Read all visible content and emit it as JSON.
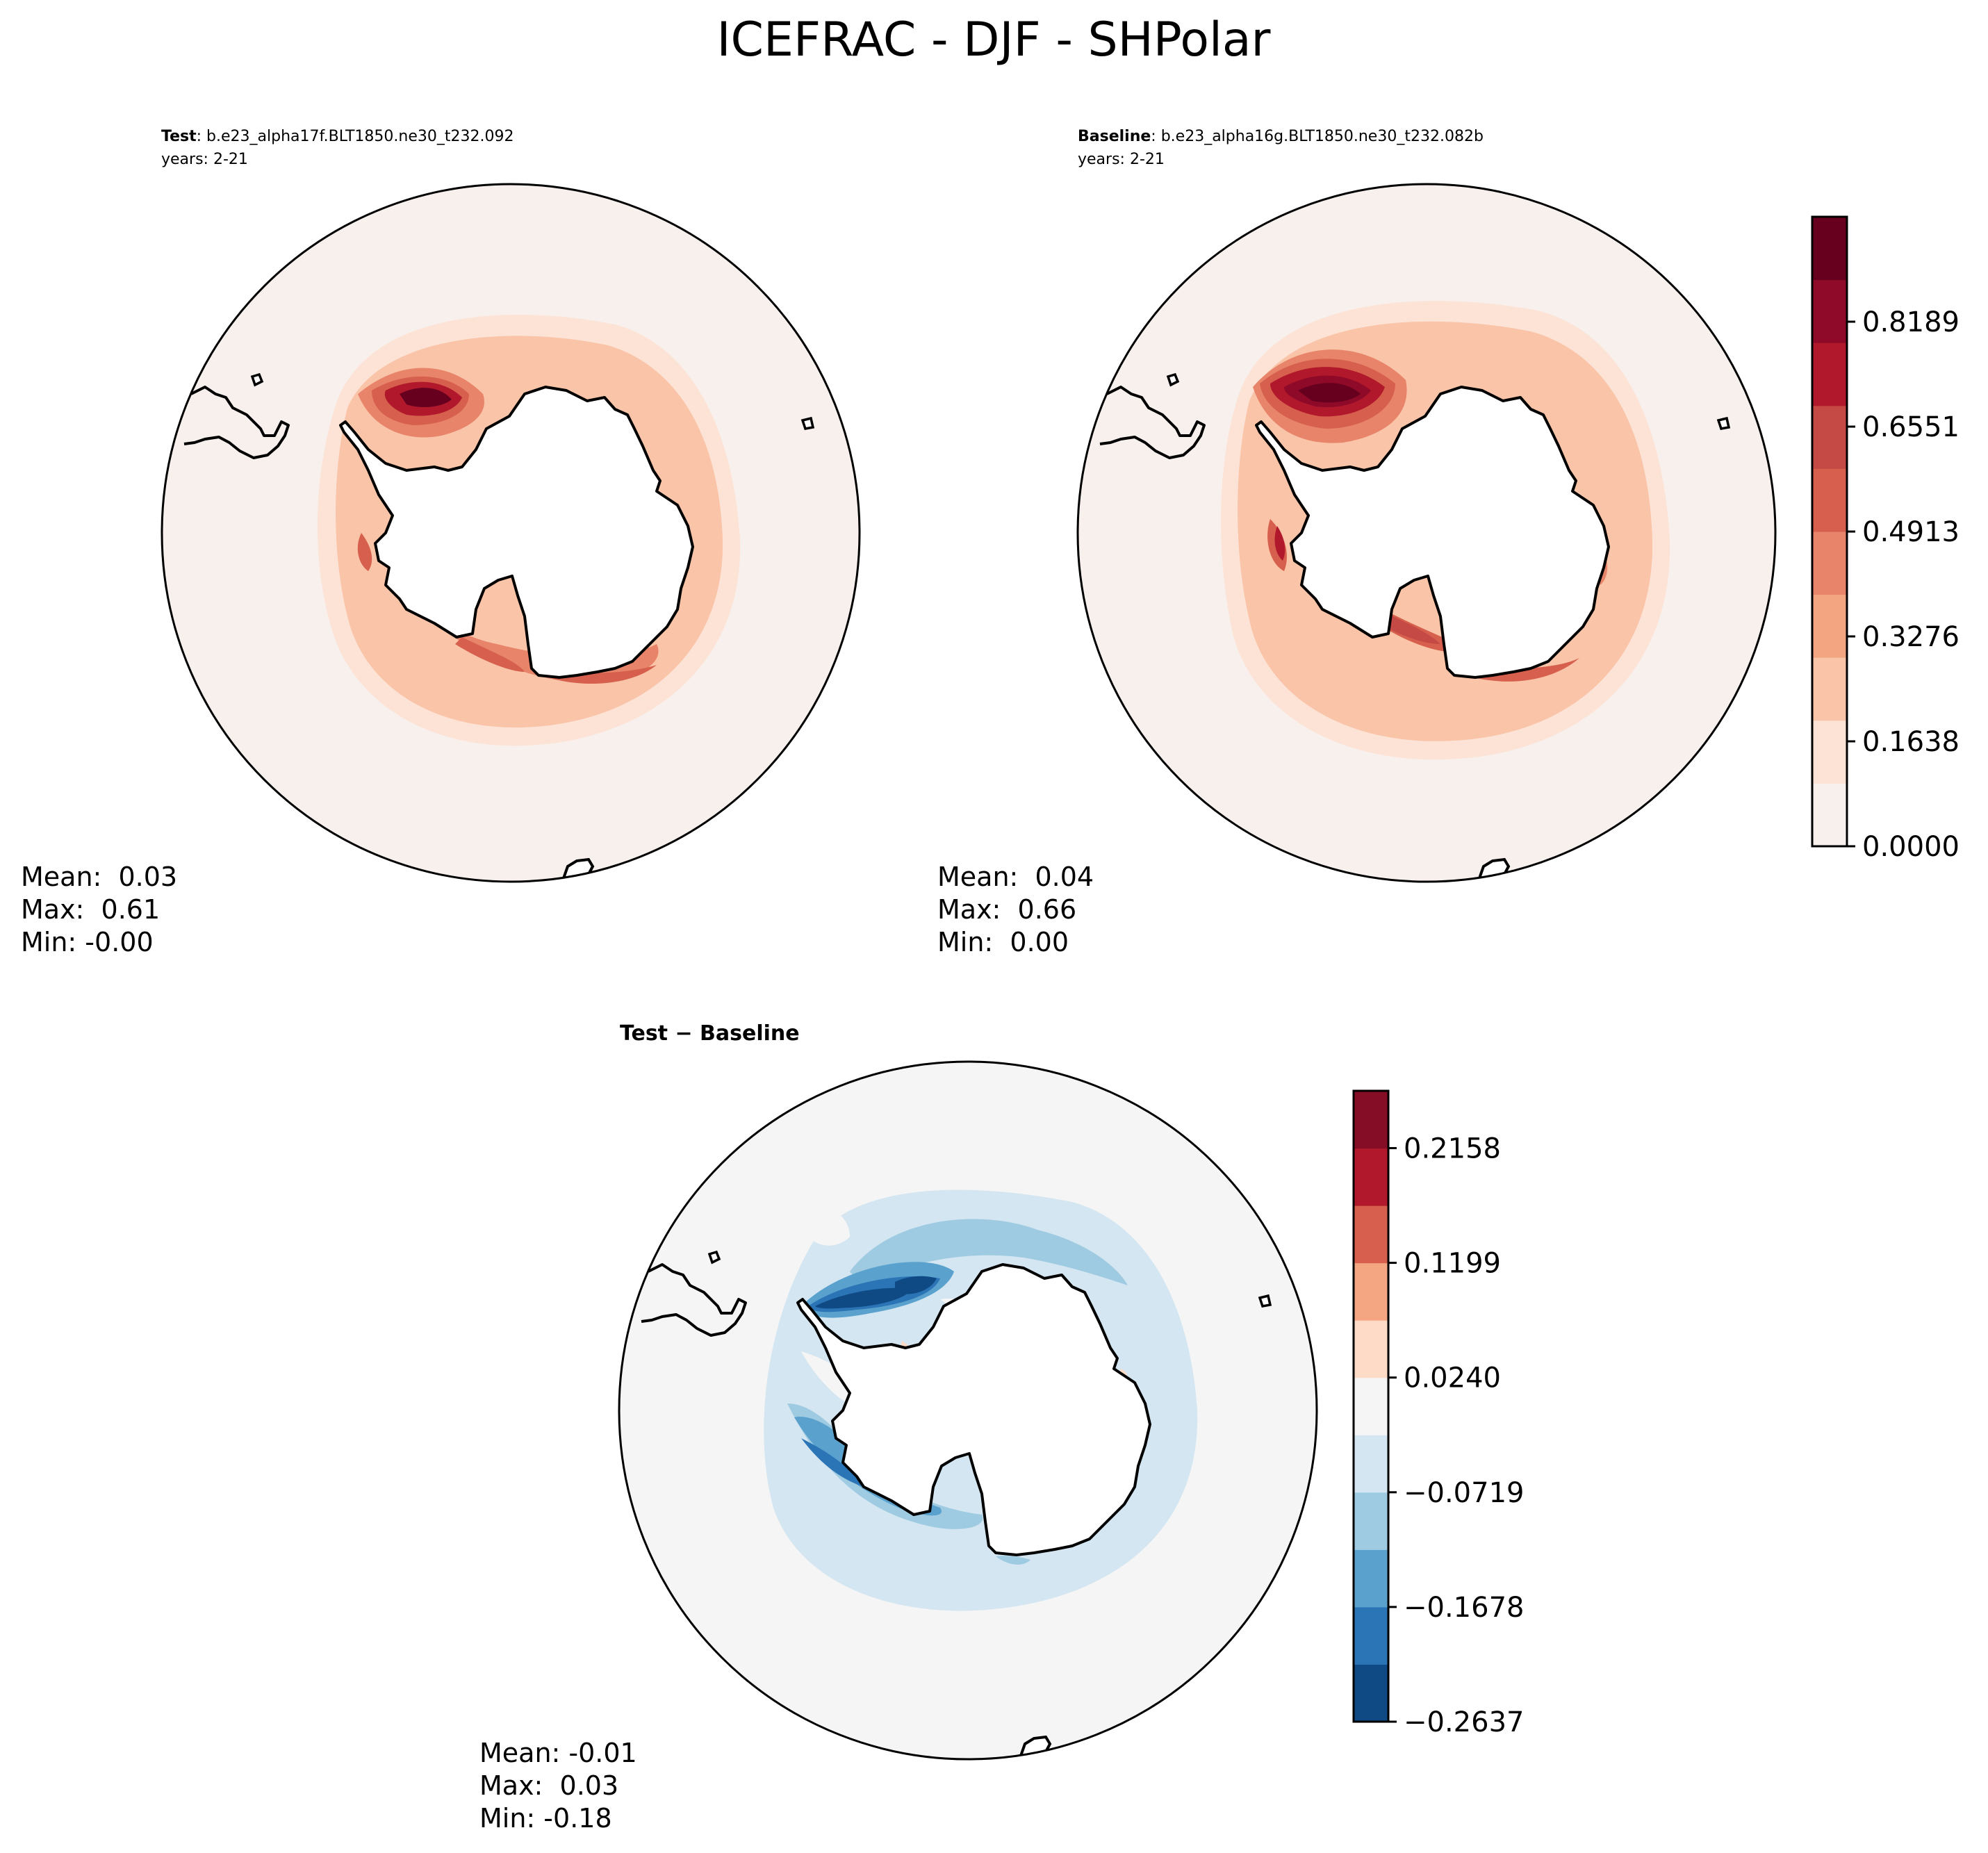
{
  "figure": {
    "title": "ICEFRAC - DJF - SHPolar",
    "top_colorbar_ticks": [
      "0.0000",
      "0.1638",
      "0.3276",
      "0.4913",
      "0.6551",
      "0.8189"
    ],
    "top_colorbar_colors": [
      "#f7f0ec",
      "#fde3d6",
      "#f9c4a8",
      "#f3a582",
      "#e8846a",
      "#d6604d",
      "#c54a45",
      "#b2182b",
      "#8f0a28",
      "#67001f"
    ],
    "diff_colorbar_ticks": [
      "−0.2637",
      "−0.1678",
      "−0.0719",
      "0.0240",
      "0.1199",
      "0.2158"
    ],
    "diff_colorbar_colors": [
      "#0f4a85",
      "#2b74b5",
      "#5aa2cd",
      "#9fcbe2",
      "#d4e6f1",
      "#f5f5f5",
      "#fddbc7",
      "#f4a582",
      "#d6604d",
      "#b2182b",
      "#850e26"
    ],
    "contour_colors": {
      "ocean_background": "#f7f0ec",
      "diff_background": "#f5f5f5",
      "coastline": "#000000"
    }
  },
  "chart_data": [
    {
      "type": "heatmap",
      "panel": "test",
      "projection": "south-polar-stereographic",
      "variable": "ICEFRAC",
      "season": "DJF",
      "label_bold": "Test",
      "label_text": ": b.e23_alpha17f.BLT1850.ne30_t232.092",
      "years": "years: 2-21",
      "stats": {
        "mean_label": "Mean:  0.03",
        "max_label": "Max:  0.61",
        "min_label": "Min: -0.00"
      },
      "mean": 0.03,
      "max": 0.61,
      "min": -0.0,
      "colorbar_levels": [
        0.0,
        0.1638,
        0.3276,
        0.4913,
        0.6551,
        0.8189
      ]
    },
    {
      "type": "heatmap",
      "panel": "baseline",
      "projection": "south-polar-stereographic",
      "variable": "ICEFRAC",
      "season": "DJF",
      "label_bold": "Baseline",
      "label_text": ": b.e23_alpha16g.BLT1850.ne30_t232.082b",
      "years": "years: 2-21",
      "stats": {
        "mean_label": "Mean:  0.04",
        "max_label": "Max:  0.66",
        "min_label": "Min:  0.00"
      },
      "mean": 0.04,
      "max": 0.66,
      "min": 0.0,
      "colorbar_levels": [
        0.0,
        0.1638,
        0.3276,
        0.4913,
        0.6551,
        0.8189
      ]
    },
    {
      "type": "heatmap",
      "panel": "difference",
      "projection": "south-polar-stereographic",
      "variable": "ICEFRAC",
      "season": "DJF",
      "label_bold": "Test − Baseline",
      "stats": {
        "mean_label": "Mean: -0.01",
        "max_label": "Max:  0.03",
        "min_label": "Min: -0.18"
      },
      "mean": -0.01,
      "max": 0.03,
      "min": -0.18,
      "colorbar_levels": [
        -0.2637,
        -0.1678,
        -0.0719,
        0.024,
        0.1199,
        0.2158
      ]
    }
  ]
}
